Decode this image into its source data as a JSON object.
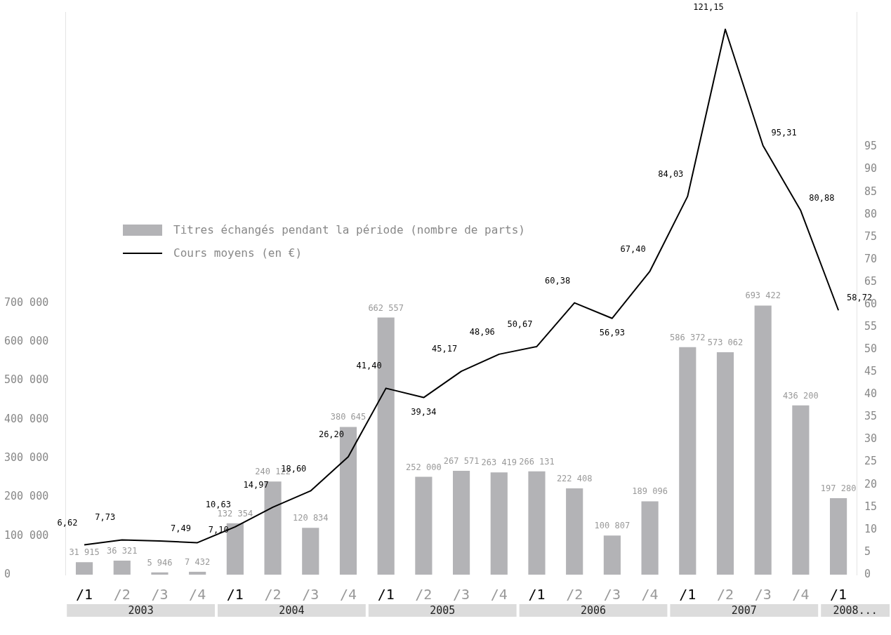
{
  "chart_data": {
    "type": "bar",
    "categories": [
      "/1",
      "/2",
      "/3",
      "/4",
      "/1",
      "/2",
      "/3",
      "/4",
      "/1",
      "/2",
      "/3",
      "/4",
      "/1",
      "/2",
      "/3",
      "/4",
      "/1",
      "/2",
      "/3",
      "/4",
      "/1"
    ],
    "annotations": [
      "2003",
      "2004",
      "2005",
      "2006",
      "2007",
      "2008..."
    ],
    "series": [
      {
        "name": "Titres échangés pendant la période (nombre de parts)",
        "color": "#b3b3b6",
        "values": [
          31915,
          36321,
          5946,
          7432,
          132354,
          240122,
          120834,
          380645,
          662557,
          252000,
          267571,
          263419,
          266131,
          222408,
          100807,
          189096,
          586372,
          573062,
          693422,
          436200,
          197280
        ],
        "value_labels": [
          "31 915",
          "36 321",
          "5 946",
          "7 432",
          "132 354",
          "240 122",
          "120 834",
          "380 645",
          "662 557",
          "252 000",
          "267 571",
          "263 419",
          "266 131",
          "222 408",
          "100 807",
          "189 096",
          "586 372",
          "573 062",
          "693 422",
          "436 200",
          "197 280"
        ]
      },
      {
        "name": "Cours moyens (en €)",
        "type": "line",
        "axis": "y2",
        "color": "#000000",
        "values": [
          6.62,
          7.73,
          7.49,
          7.1,
          10.63,
          14.97,
          18.6,
          26.2,
          41.4,
          39.34,
          45.17,
          48.96,
          50.67,
          60.38,
          56.93,
          67.4,
          84.03,
          121.15,
          95.31,
          80.88,
          58.72
        ],
        "value_labels": [
          "6,62",
          "7,73",
          "7,49",
          "7,10",
          "10,63",
          "14,97",
          "18,60",
          "26,20",
          "41,40",
          "39,34",
          "45,17",
          "48,96",
          "50,67",
          "60,38",
          "56,93",
          "67,40",
          "84,03",
          "121,15",
          "95,31",
          "80,88",
          "58,72"
        ]
      }
    ],
    "ylim": [
      0,
      1450000
    ],
    "yticks": [
      {
        "value": 0,
        "label": "0"
      },
      {
        "value": 100000,
        "label": "100 000"
      },
      {
        "value": 200000,
        "label": "200 000"
      },
      {
        "value": 300000,
        "label": "300 000"
      },
      {
        "value": 400000,
        "label": "400 000"
      },
      {
        "value": 500000,
        "label": "500 000"
      },
      {
        "value": 600000,
        "label": "600 000"
      },
      {
        "value": 700000,
        "label": "700 000"
      }
    ],
    "y2lim": [
      0,
      125
    ],
    "y2ticks": [
      0,
      5,
      10,
      15,
      20,
      25,
      30,
      35,
      40,
      45,
      50,
      55,
      60,
      65,
      70,
      75,
      80,
      85,
      90,
      95
    ],
    "grid": false,
    "legend": "left",
    "marker": "none",
    "line_style": "solid"
  }
}
